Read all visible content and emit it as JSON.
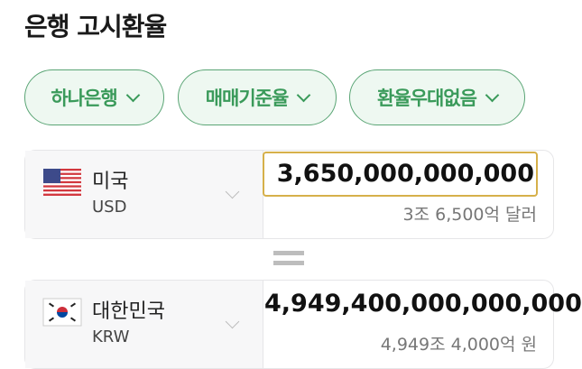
{
  "title": "은행 고시환율",
  "filters": [
    {
      "label": "하나은행"
    },
    {
      "label": "매매기준율"
    },
    {
      "label": "환율우대없음"
    }
  ],
  "from": {
    "country": "미국",
    "code": "USD",
    "flag": "us-flag-icon",
    "amount": "3,650,000,000,000",
    "amount_text": "3조 6,500억 달러"
  },
  "to": {
    "country": "대한민국",
    "code": "KRW",
    "flag": "kr-flag-icon",
    "amount": "4,949,400,000,000,000",
    "amount_text": "4,949조 4,000억 원"
  },
  "colors": {
    "accent": "#3a9a5a",
    "input_border": "#d6b04a"
  }
}
